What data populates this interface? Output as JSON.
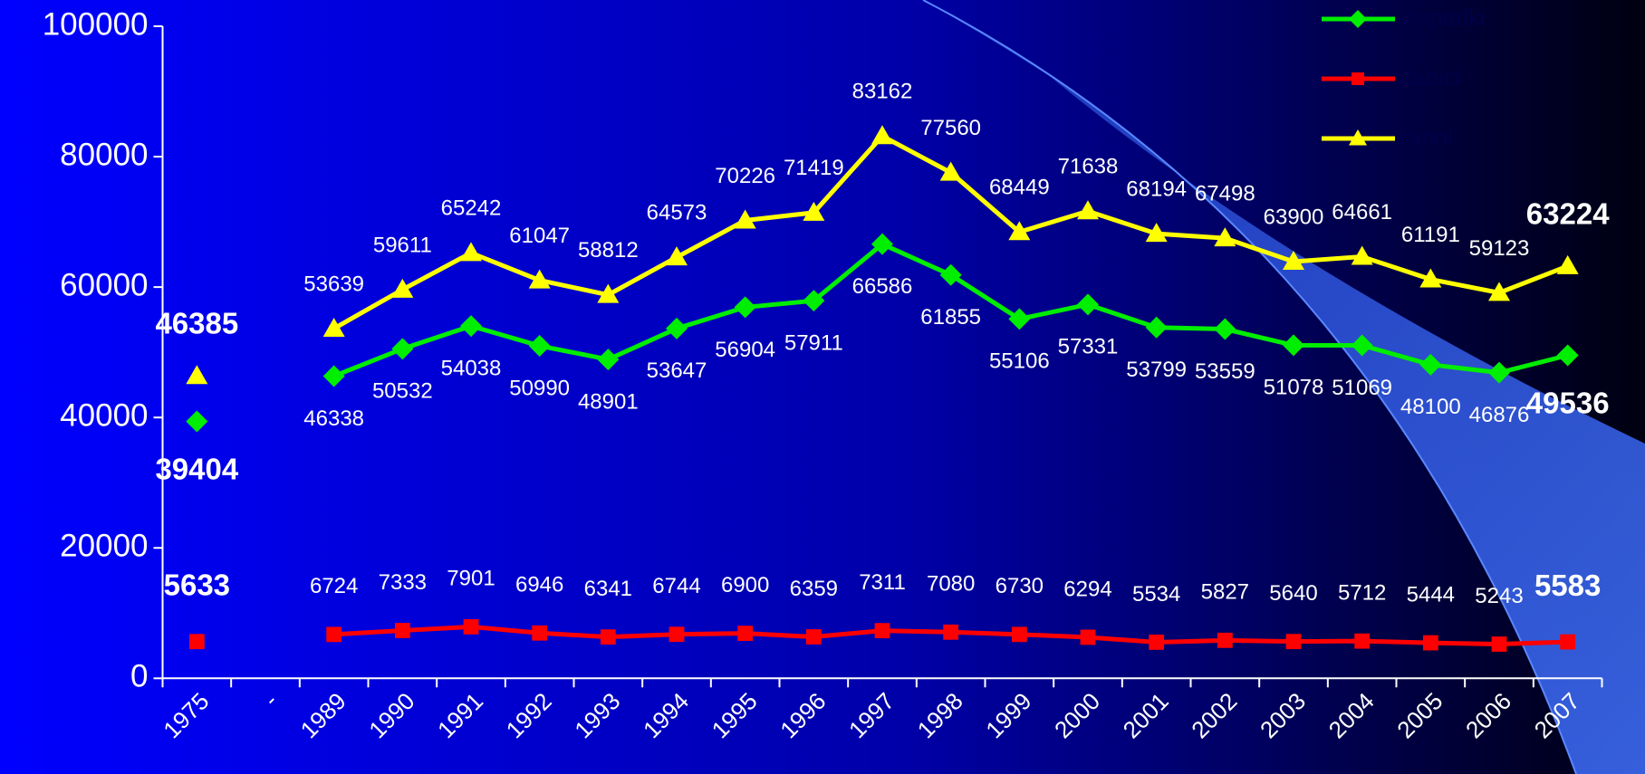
{
  "chart_data": {
    "type": "line",
    "categories": [
      "1975",
      "-",
      "1989",
      "1990",
      "1991",
      "1992",
      "1993",
      "1994",
      "1995",
      "1996",
      "1997",
      "1998",
      "1999",
      "2000",
      "2001",
      "2002",
      "2003",
      "2004",
      "2005",
      "2006",
      "2007"
    ],
    "series": [
      {
        "name": "wypadki",
        "color": "#00ee00",
        "marker": "diamond",
        "values": [
          39404,
          null,
          46338,
          50532,
          54038,
          50990,
          48901,
          53647,
          56904,
          57911,
          66586,
          61855,
          55106,
          57331,
          53799,
          53559,
          51078,
          51069,
          48100,
          46876,
          49536
        ]
      },
      {
        "name": "zabici",
        "color": "#ff0000",
        "marker": "square",
        "values": [
          5633,
          null,
          6724,
          7333,
          7901,
          6946,
          6341,
          6744,
          6900,
          6359,
          7311,
          7080,
          6730,
          6294,
          5534,
          5827,
          5640,
          5712,
          5444,
          5243,
          5583
        ]
      },
      {
        "name": "ranni",
        "color": "#ffff00",
        "marker": "triangle",
        "values": [
          46385,
          null,
          53639,
          59611,
          65242,
          61047,
          58812,
          64573,
          70226,
          71419,
          83162,
          77560,
          68449,
          71638,
          68194,
          67498,
          63900,
          64661,
          61191,
          59123,
          63224
        ]
      }
    ],
    "ylim": [
      0,
      100000
    ],
    "yticks": [
      0,
      20000,
      40000,
      60000,
      80000,
      100000
    ],
    "legend": "top-right"
  }
}
